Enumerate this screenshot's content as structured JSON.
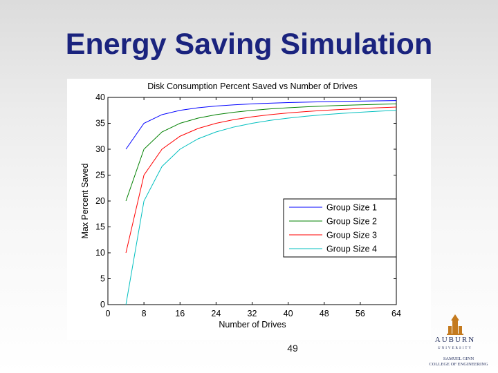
{
  "slide": {
    "title": "Energy Saving Simulation",
    "page_number": "49"
  },
  "logo": {
    "emblem": "tiger-tower-emblem-icon",
    "word": "AUBURN",
    "sub": "UNIVERSITY",
    "line1": "SAMUEL GINN",
    "line2": "COLLEGE OF ENGINEERING"
  },
  "colors": {
    "title": "#1a237e",
    "series": [
      "#0000ff",
      "#008000",
      "#ff0000",
      "#00bfbf"
    ],
    "emblem": "#c47a1e"
  },
  "chart_data": {
    "type": "line",
    "title": "Disk Consumption Percent Saved vs Number of Drives",
    "xlabel": "Number of Drives",
    "ylabel": "Max Percent Saved",
    "xlim": [
      0,
      64
    ],
    "ylim": [
      0,
      40
    ],
    "xticks": [
      0,
      8,
      16,
      24,
      32,
      40,
      48,
      56,
      64
    ],
    "yticks": [
      0,
      5,
      10,
      15,
      20,
      25,
      30,
      35,
      40
    ],
    "grid": false,
    "legend_position": "right",
    "x": [
      4,
      8,
      12,
      16,
      20,
      24,
      28,
      32,
      36,
      40,
      44,
      48,
      52,
      56,
      60,
      64
    ],
    "series": [
      {
        "name": "Group Size 1",
        "values": [
          30,
          35,
          36.67,
          37.5,
          38,
          38.33,
          38.57,
          38.75,
          38.89,
          39,
          39.09,
          39.17,
          39.23,
          39.29,
          39.33,
          39.38
        ]
      },
      {
        "name": "Group Size 2",
        "values": [
          20,
          30,
          33.33,
          35,
          36,
          36.67,
          37.14,
          37.5,
          37.78,
          38,
          38.18,
          38.33,
          38.46,
          38.57,
          38.67,
          38.75
        ]
      },
      {
        "name": "Group Size 3",
        "values": [
          10,
          25,
          30,
          32.5,
          34,
          35,
          35.71,
          36.25,
          36.67,
          37,
          37.27,
          37.5,
          37.69,
          37.86,
          38,
          38.13
        ]
      },
      {
        "name": "Group Size 4",
        "values": [
          0,
          20,
          26.67,
          30,
          32,
          33.33,
          34.29,
          35,
          35.56,
          36,
          36.36,
          36.67,
          36.92,
          37.14,
          37.33,
          37.5
        ]
      }
    ]
  }
}
